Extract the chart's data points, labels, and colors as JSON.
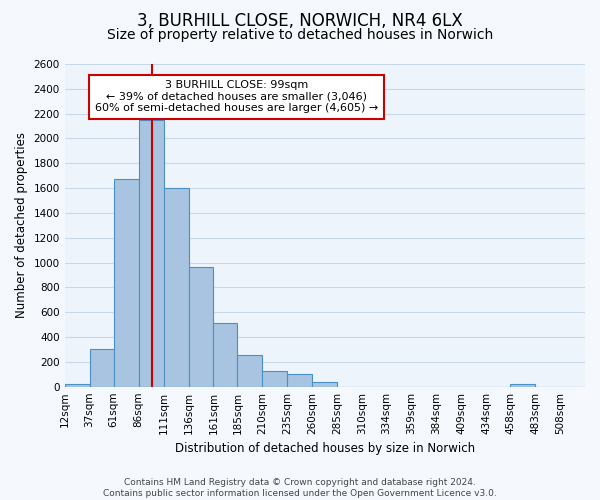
{
  "title": "3, BURHILL CLOSE, NORWICH, NR4 6LX",
  "subtitle": "Size of property relative to detached houses in Norwich",
  "xlabel": "Distribution of detached houses by size in Norwich",
  "ylabel": "Number of detached properties",
  "bin_labels": [
    "12sqm",
    "37sqm",
    "61sqm",
    "86sqm",
    "111sqm",
    "136sqm",
    "161sqm",
    "185sqm",
    "210sqm",
    "235sqm",
    "260sqm",
    "285sqm",
    "310sqm",
    "334sqm",
    "359sqm",
    "384sqm",
    "409sqm",
    "434sqm",
    "458sqm",
    "483sqm",
    "508sqm"
  ],
  "bin_left_edges": [
    12,
    37,
    61,
    86,
    111,
    136,
    161,
    185,
    210,
    235,
    260,
    285,
    310,
    334,
    359,
    384,
    409,
    434,
    458,
    483,
    508
  ],
  "bar_values": [
    25,
    300,
    1670,
    2150,
    1600,
    965,
    510,
    255,
    125,
    100,
    35,
    0,
    0,
    0,
    0,
    0,
    0,
    0,
    20,
    0,
    0
  ],
  "bar_color": "#a8c4e0",
  "bar_edge_color": "#4a90c4",
  "grid_color": "#c8d8e8",
  "background_color": "#eef4fb",
  "fig_background_color": "#f5f9fe",
  "marker_line_x": 99,
  "xlim_left": 12,
  "xlim_right": 533,
  "ylim": [
    0,
    2600
  ],
  "yticks": [
    0,
    200,
    400,
    600,
    800,
    1000,
    1200,
    1400,
    1600,
    1800,
    2000,
    2200,
    2400,
    2600
  ],
  "annotation_title": "3 BURHILL CLOSE: 99sqm",
  "annotation_line1": "← 39% of detached houses are smaller (3,046)",
  "annotation_line2": "60% of semi-detached houses are larger (4,605) →",
  "annotation_box_color": "#ffffff",
  "annotation_box_edge_color": "#cc0000",
  "footer_line1": "Contains HM Land Registry data © Crown copyright and database right 2024.",
  "footer_line2": "Contains public sector information licensed under the Open Government Licence v3.0.",
  "title_fontsize": 12,
  "subtitle_fontsize": 10,
  "axis_label_fontsize": 8.5,
  "tick_fontsize": 7.5,
  "annotation_fontsize": 8,
  "footer_fontsize": 6.5
}
